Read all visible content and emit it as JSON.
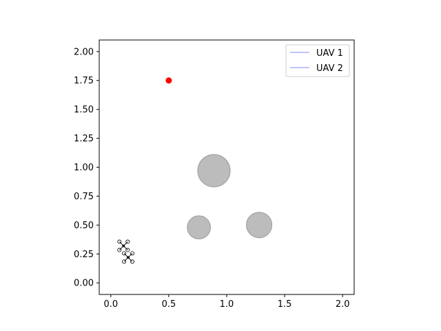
{
  "chart_data": {
    "type": "scatter",
    "title": "",
    "xlabel": "",
    "ylabel": "",
    "xlim": [
      -0.1,
      2.1
    ],
    "ylim": [
      -0.1,
      2.1
    ],
    "xticks": [
      "0.0",
      "0.5",
      "1.0",
      "1.5",
      "2.0"
    ],
    "xtick_values": [
      0.0,
      0.5,
      1.0,
      1.5,
      2.0
    ],
    "yticks": [
      "0.00",
      "0.25",
      "0.50",
      "0.75",
      "1.00",
      "1.25",
      "1.50",
      "1.75",
      "2.00"
    ],
    "ytick_values": [
      0.0,
      0.25,
      0.5,
      0.75,
      1.0,
      1.25,
      1.5,
      1.75,
      2.0
    ],
    "grid": false,
    "legend_position": "top-right",
    "series": [
      {
        "name": "UAV 1",
        "color": "#aab0ff",
        "x": [
          0.11
        ],
        "y": [
          0.32
        ]
      },
      {
        "name": "UAV 2",
        "color": "#aab0ff",
        "x": [
          0.15
        ],
        "y": [
          0.22
        ]
      }
    ],
    "target": {
      "x": 0.5,
      "y": 1.75,
      "color": "#ff0000"
    },
    "obstacles": [
      {
        "x": 0.89,
        "y": 0.97,
        "r": 0.14,
        "color": "#b0b0b0"
      },
      {
        "x": 0.76,
        "y": 0.48,
        "r": 0.1,
        "color": "#b0b0b0"
      },
      {
        "x": 1.28,
        "y": 0.5,
        "r": 0.11,
        "color": "#b0b0b0"
      }
    ]
  }
}
